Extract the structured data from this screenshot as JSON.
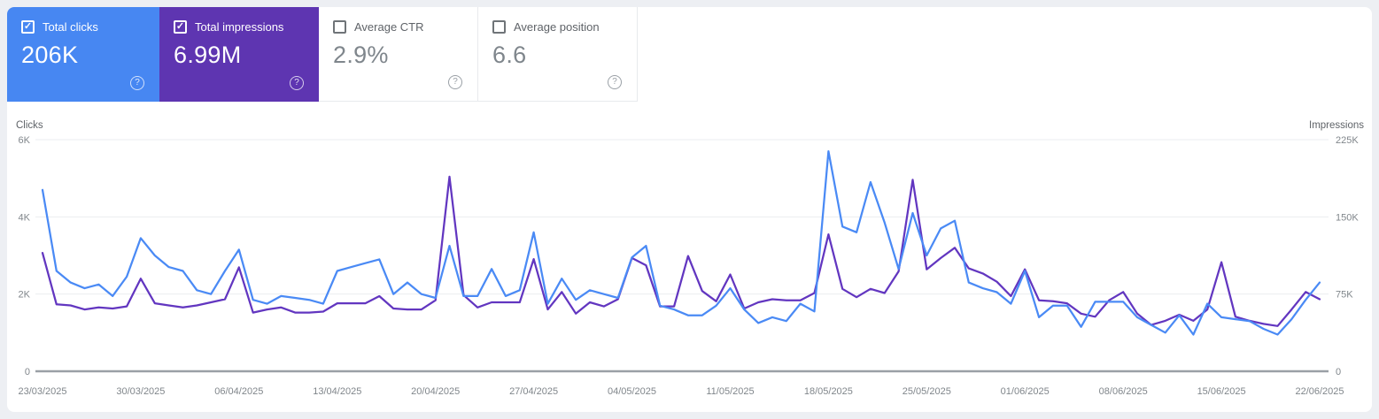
{
  "page": {
    "background": "#edeff3",
    "panel_background": "#ffffff"
  },
  "metric_cards": [
    {
      "id": "total-clicks",
      "label": "Total clicks",
      "value": "206K",
      "checked": true,
      "background": "#4787f2",
      "text_color": "#ffffff"
    },
    {
      "id": "total-impressions",
      "label": "Total impressions",
      "value": "6.99M",
      "checked": true,
      "background": "#5e35b1",
      "text_color": "#ffffff"
    },
    {
      "id": "average-ctr",
      "label": "Average CTR",
      "value": "2.9%",
      "checked": false,
      "background": "#ffffff",
      "text_color": "#7f868c"
    },
    {
      "id": "average-position",
      "label": "Average position",
      "value": "6.6",
      "checked": false,
      "background": "#ffffff",
      "text_color": "#7f868c"
    }
  ],
  "chart_data": {
    "type": "line",
    "title": "",
    "x_frequency": "daily",
    "x_start": "23/03/2025",
    "x_end": "22/06/2025",
    "x_tick_labels": [
      "23/03/2025",
      "30/03/2025",
      "06/04/2025",
      "13/04/2025",
      "20/04/2025",
      "27/04/2025",
      "04/05/2025",
      "11/05/2025",
      "18/05/2025",
      "25/05/2025",
      "01/06/2025",
      "08/06/2025",
      "15/06/2025",
      "22/06/2025"
    ],
    "left_axis": {
      "label": "Clicks",
      "ticks": [
        "0",
        "2K",
        "4K",
        "6K"
      ],
      "range": [
        0,
        6000
      ]
    },
    "right_axis": {
      "label": "Impressions",
      "ticks": [
        "0",
        "75K",
        "150K",
        "225K"
      ],
      "range": [
        0,
        225000
      ]
    },
    "grid": true,
    "legend_position": "none",
    "series": [
      {
        "name": "Total clicks",
        "axis": "left",
        "color": "#4a8af5",
        "values": [
          4700,
          2600,
          2300,
          2150,
          2250,
          1950,
          2450,
          3450,
          3000,
          2700,
          2600,
          2100,
          2000,
          2600,
          3150,
          1850,
          1750,
          1950,
          1900,
          1850,
          1750,
          2600,
          2700,
          2800,
          2900,
          2000,
          2300,
          2000,
          1900,
          3250,
          1950,
          1950,
          2650,
          1950,
          2100,
          3600,
          1750,
          2400,
          1850,
          2100,
          2000,
          1900,
          2950,
          3250,
          1700,
          1600,
          1450,
          1450,
          1700,
          2150,
          1600,
          1250,
          1400,
          1300,
          1750,
          1550,
          5700,
          3750,
          3600,
          4900,
          3850,
          2650,
          4100,
          3000,
          3700,
          3900,
          2300,
          2150,
          2050,
          1750,
          2600,
          1400,
          1700,
          1700,
          1150,
          1800,
          1800,
          1800,
          1400,
          1200,
          1000,
          1450,
          950,
          1750,
          1400,
          1350,
          1300,
          1100,
          950,
          1350,
          1850,
          2300
        ]
      },
      {
        "name": "Total impressions",
        "axis": "right",
        "color": "#6236c0",
        "values": [
          115000,
          65000,
          64000,
          60000,
          62000,
          61000,
          63000,
          90000,
          66000,
          64000,
          62000,
          64000,
          67000,
          70000,
          101000,
          57000,
          60000,
          62000,
          57000,
          57000,
          58000,
          66000,
          66000,
          66000,
          73000,
          61000,
          60000,
          60000,
          69000,
          189000,
          74000,
          62000,
          67000,
          67000,
          67000,
          109000,
          60000,
          77000,
          56000,
          67000,
          63000,
          70000,
          110000,
          103000,
          63000,
          63000,
          112000,
          78000,
          68000,
          94000,
          61000,
          67000,
          70000,
          69000,
          69000,
          76000,
          133000,
          80000,
          72000,
          80000,
          76000,
          97000,
          186000,
          99000,
          110000,
          120000,
          100000,
          95000,
          87000,
          73000,
          99000,
          69000,
          68000,
          66000,
          56000,
          53000,
          69000,
          77000,
          56000,
          45000,
          49000,
          55000,
          49000,
          60000,
          106000,
          53000,
          49000,
          46000,
          44000,
          60000,
          77000,
          70000
        ]
      }
    ]
  }
}
